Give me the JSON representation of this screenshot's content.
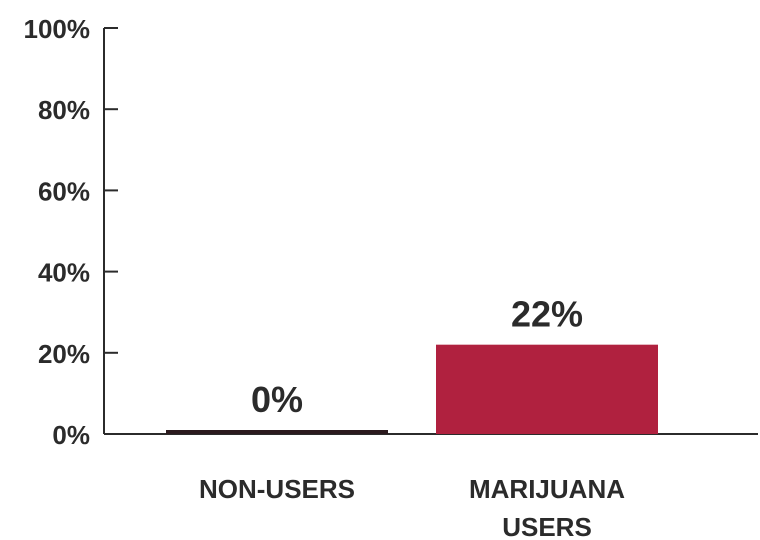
{
  "chart_data": {
    "type": "bar",
    "categories": [
      [
        "NON-USERS"
      ],
      [
        "MARIJUANA",
        "USERS"
      ]
    ],
    "values": [
      0,
      22
    ],
    "value_labels": [
      "0%",
      "22%"
    ],
    "y_ticks": [
      0,
      20,
      40,
      60,
      80,
      100
    ],
    "y_tick_labels": [
      "0%",
      "20%",
      "40%",
      "60%",
      "80%",
      "100%"
    ],
    "ylim": [
      0,
      100
    ],
    "grid": false,
    "colors": {
      "bars": [
        "#2b1a1e",
        "#b0213f"
      ],
      "axis": "#2b2b2b",
      "text": "#2b2b2b"
    }
  }
}
